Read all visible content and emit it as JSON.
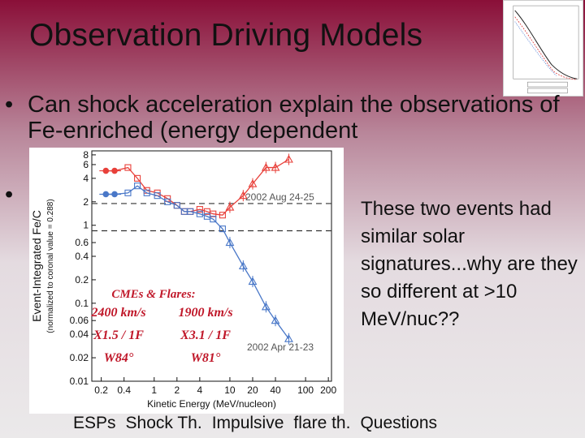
{
  "slide": {
    "title": "Observation Driving Models",
    "bullet_symbol": "•",
    "bullet1": "Can shock acceleration explain the observations of Fe-enriched (energy dependent",
    "side_text": "These two events had similar solar signatures...why are they so different at >10 MeV/nuc??"
  },
  "nav": {
    "items": [
      "ESPs",
      "Shock Th.",
      "Impulsive",
      "flare th.",
      "Questions"
    ]
  },
  "chart_data": {
    "type": "line",
    "ylabel": "Event-Integrated Fe/C",
    "ylabel_sub": "(normalized to coronal value = 0.288)",
    "xlabel": "Kinetic Energy (MeV/nucleon)",
    "x_ticks": [
      "0.2",
      "0.4",
      "1",
      "2",
      "4",
      "10",
      "20",
      "40",
      "100",
      "200"
    ],
    "y_ticks": [
      "0.01",
      "0.02",
      "0.04",
      "0.06",
      "0.1",
      "0.2",
      "0.4",
      "0.6",
      "1",
      "2",
      "4",
      "6",
      "8"
    ],
    "colors": {
      "aug": "#e8403a",
      "apr": "#4a78c8",
      "dashed": "#333333"
    },
    "series": [
      {
        "name": "2002 Aug 24-25",
        "x": [
          0.23,
          0.3,
          0.45,
          0.6,
          0.8,
          1.1,
          1.5,
          2.0,
          2.5,
          3.0,
          4.0,
          5.0,
          6.0,
          8.0,
          10,
          15,
          20,
          30,
          40,
          60
        ],
        "y": [
          5.0,
          5.0,
          5.5,
          4.0,
          2.8,
          2.6,
          2.2,
          1.8,
          1.5,
          1.5,
          1.6,
          1.5,
          1.4,
          1.35,
          1.7,
          2.4,
          3.4,
          5.5,
          5.5,
          7.0
        ]
      },
      {
        "name": "2002 Apr 21-23",
        "x": [
          0.23,
          0.3,
          0.45,
          0.6,
          0.8,
          1.1,
          1.5,
          2.0,
          2.5,
          3.0,
          4.0,
          5.0,
          6.0,
          8.0,
          10,
          15,
          20,
          30,
          40,
          60
        ],
        "y": [
          2.5,
          2.5,
          2.6,
          3.2,
          2.6,
          2.4,
          2.0,
          1.8,
          1.5,
          1.5,
          1.4,
          1.3,
          1.2,
          0.9,
          0.6,
          0.3,
          0.19,
          0.09,
          0.06,
          0.035
        ]
      }
    ],
    "series_labels": [
      "2002 Aug 24-25",
      "2002 Apr 21-23"
    ],
    "annotations": {
      "header": "CMEs & Flares:",
      "left": [
        "2400  km/s",
        "X1.5 / 1F",
        "W84°"
      ],
      "right": [
        "1900 km/s",
        "X3.1 / 1F",
        "W81°"
      ]
    }
  }
}
